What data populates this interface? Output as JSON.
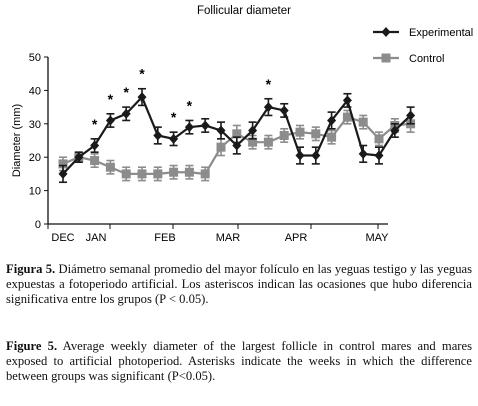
{
  "chart_data": {
    "type": "line",
    "title": "Follicular diameter",
    "ylabel": "Diameter (mm)",
    "ylim": [
      0,
      50
    ],
    "yticks": [
      0,
      10,
      20,
      30,
      40,
      50
    ],
    "month_labels": [
      "DEC",
      "JAN",
      "FEB",
      "MAR",
      "APR",
      "MAY"
    ],
    "legend_position": "top-right",
    "grid": false,
    "series": [
      {
        "name": "Experimental",
        "marker": "diamond",
        "color": "#1a1a1a",
        "values": [
          15,
          20,
          23.5,
          31,
          33,
          38,
          26.5,
          25.5,
          29,
          29.5,
          28,
          23.5,
          28,
          35,
          34,
          20.5,
          20.5,
          31,
          37,
          21,
          20.5,
          28,
          32.5
        ],
        "errors": [
          2.5,
          1.5,
          2,
          2,
          2,
          2.5,
          2.5,
          2,
          2,
          2,
          2.5,
          2.5,
          2.5,
          2.5,
          2,
          2.5,
          2.5,
          2.5,
          2,
          2.5,
          2.5,
          2,
          2.5
        ]
      },
      {
        "name": "Control",
        "marker": "square",
        "color": "#8c8c8c",
        "values": [
          18,
          20,
          19,
          17,
          15,
          15,
          15,
          15.5,
          15.5,
          15,
          23,
          27,
          24.5,
          24.5,
          26.5,
          27.5,
          27,
          26,
          32,
          30.5,
          25.5,
          29.5,
          30
        ],
        "errors": [
          2,
          1.5,
          2,
          2,
          2,
          2,
          2,
          2,
          2,
          2,
          2.5,
          2.5,
          2,
          2,
          2,
          2,
          2,
          2,
          2,
          2,
          2,
          2,
          2.5
        ]
      }
    ],
    "significance": {
      "marker": "*",
      "weeks": [
        2,
        3,
        4,
        5,
        7,
        8,
        13
      ]
    }
  },
  "captions": {
    "es": {
      "label": "Figura 5.",
      "text": " Diámetro semanal promedio del mayor folículo en las yeguas testigo y las yeguas expuestas a fotoperiodo artificial. Los asteriscos indican las ocasiones que hubo diferencia significativa entre los grupos (P < 0.05)."
    },
    "en": {
      "label": "Figure 5.",
      "text": " Average weekly diameter of the largest follicle in control mares and mares exposed to artificial photoperiod. Asterisks indicate the weeks in which the difference between groups was significant (P<0.05)."
    }
  }
}
